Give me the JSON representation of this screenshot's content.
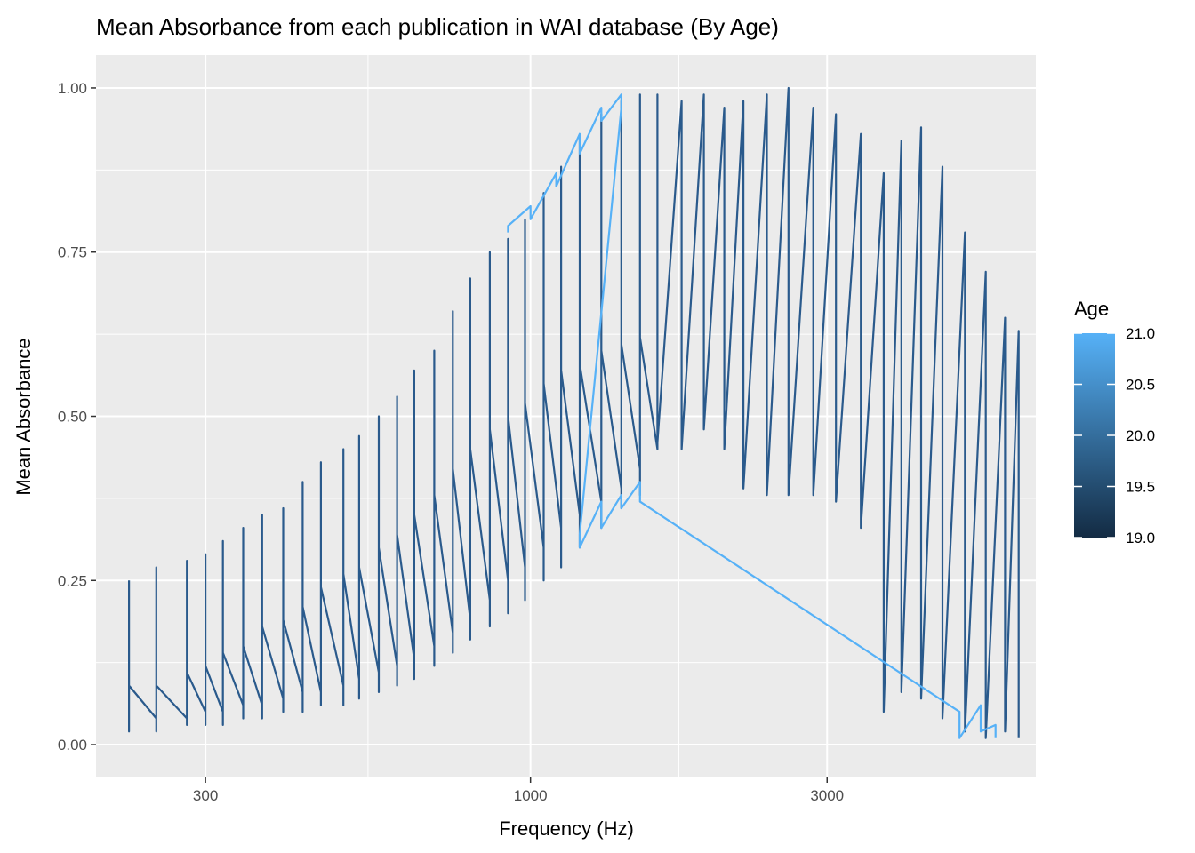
{
  "chart_data": {
    "type": "line",
    "title": "Mean Absorbance from each publication in WAI database (By Age)",
    "xlabel": "Frequency (Hz)",
    "ylabel": "Mean Absorbance",
    "x_scale": "log10",
    "xlim": [
      200,
      6500
    ],
    "ylim": [
      -0.05,
      1.05
    ],
    "x_ticks": [
      {
        "value": 300,
        "label": "300"
      },
      {
        "value": 1000,
        "label": "1000"
      },
      {
        "value": 3000,
        "label": "3000"
      }
    ],
    "y_ticks": [
      {
        "value": 0.0,
        "label": "0.00"
      },
      {
        "value": 0.25,
        "label": "0.25"
      },
      {
        "value": 0.5,
        "label": "0.50"
      },
      {
        "value": 0.75,
        "label": "0.75"
      },
      {
        "value": 1.0,
        "label": "1.00"
      }
    ],
    "grid": true,
    "legend": {
      "title": "Age",
      "position": "right",
      "type": "colorbar",
      "range": [
        19.0,
        21.0
      ],
      "color_low": "#132b43",
      "color_high": "#56b1f7",
      "ticks": [
        {
          "value": 21.0,
          "label": "21.0"
        },
        {
          "value": 20.5,
          "label": "20.5"
        },
        {
          "value": 20.0,
          "label": "20.0"
        },
        {
          "value": 19.5,
          "label": "19.5"
        },
        {
          "value": 19.0,
          "label": "19.0"
        }
      ]
    },
    "series": [
      {
        "age": 20.2,
        "color": "#2a5a8c",
        "points": [
          [
            226,
            0.25
          ],
          [
            226,
            0.02
          ],
          [
            226,
            0.09
          ],
          [
            250,
            0.04
          ],
          [
            250,
            0.27
          ],
          [
            250,
            0.02
          ],
          [
            250,
            0.09
          ],
          [
            280,
            0.04
          ],
          [
            280,
            0.28
          ],
          [
            280,
            0.03
          ],
          [
            280,
            0.11
          ],
          [
            300,
            0.05
          ],
          [
            300,
            0.29
          ],
          [
            300,
            0.03
          ],
          [
            300,
            0.12
          ],
          [
            320,
            0.05
          ],
          [
            320,
            0.31
          ],
          [
            320,
            0.03
          ],
          [
            320,
            0.14
          ],
          [
            345,
            0.06
          ],
          [
            345,
            0.33
          ],
          [
            345,
            0.04
          ],
          [
            345,
            0.15
          ],
          [
            370,
            0.06
          ],
          [
            370,
            0.35
          ],
          [
            370,
            0.04
          ],
          [
            370,
            0.18
          ],
          [
            400,
            0.07
          ],
          [
            400,
            0.36
          ],
          [
            400,
            0.05
          ],
          [
            400,
            0.19
          ],
          [
            430,
            0.08
          ],
          [
            430,
            0.4
          ],
          [
            430,
            0.05
          ],
          [
            430,
            0.21
          ],
          [
            460,
            0.08
          ],
          [
            460,
            0.43
          ],
          [
            460,
            0.06
          ],
          [
            460,
            0.24
          ],
          [
            500,
            0.09
          ],
          [
            500,
            0.45
          ],
          [
            500,
            0.06
          ],
          [
            500,
            0.26
          ],
          [
            530,
            0.1
          ],
          [
            530,
            0.47
          ],
          [
            530,
            0.07
          ],
          [
            530,
            0.27
          ],
          [
            570,
            0.11
          ],
          [
            570,
            0.5
          ],
          [
            570,
            0.08
          ],
          [
            570,
            0.3
          ],
          [
            610,
            0.12
          ],
          [
            610,
            0.53
          ],
          [
            610,
            0.09
          ],
          [
            610,
            0.32
          ],
          [
            650,
            0.13
          ],
          [
            650,
            0.57
          ],
          [
            650,
            0.1
          ],
          [
            650,
            0.35
          ],
          [
            700,
            0.15
          ],
          [
            700,
            0.6
          ],
          [
            700,
            0.12
          ],
          [
            700,
            0.38
          ],
          [
            750,
            0.17
          ],
          [
            750,
            0.66
          ],
          [
            750,
            0.14
          ],
          [
            750,
            0.42
          ],
          [
            800,
            0.19
          ],
          [
            800,
            0.71
          ],
          [
            800,
            0.16
          ],
          [
            800,
            0.45
          ],
          [
            860,
            0.22
          ],
          [
            860,
            0.75
          ],
          [
            860,
            0.18
          ],
          [
            860,
            0.48
          ],
          [
            920,
            0.25
          ],
          [
            920,
            0.77
          ],
          [
            920,
            0.2
          ],
          [
            920,
            0.5
          ],
          [
            980,
            0.27
          ],
          [
            980,
            0.8
          ],
          [
            980,
            0.22
          ],
          [
            980,
            0.52
          ],
          [
            1050,
            0.3
          ],
          [
            1050,
            0.84
          ],
          [
            1050,
            0.25
          ],
          [
            1050,
            0.55
          ],
          [
            1120,
            0.33
          ],
          [
            1120,
            0.88
          ],
          [
            1120,
            0.27
          ],
          [
            1120,
            0.57
          ],
          [
            1200,
            0.35
          ],
          [
            1200,
            0.92
          ],
          [
            1200,
            0.3
          ],
          [
            1200,
            0.58
          ],
          [
            1300,
            0.37
          ],
          [
            1300,
            0.96
          ],
          [
            1300,
            0.33
          ],
          [
            1300,
            0.6
          ],
          [
            1400,
            0.39
          ],
          [
            1400,
            0.98
          ],
          [
            1400,
            0.36
          ],
          [
            1400,
            0.61
          ],
          [
            1500,
            0.42
          ],
          [
            1500,
            0.99
          ],
          [
            1500,
            0.38
          ],
          [
            1500,
            0.62
          ],
          [
            1600,
            0.45
          ],
          [
            1600,
            0.99
          ],
          [
            1600,
            0.46
          ],
          [
            1750,
            0.98
          ],
          [
            1750,
            0.45
          ],
          [
            1900,
            0.99
          ],
          [
            1900,
            0.48
          ],
          [
            2050,
            0.97
          ],
          [
            2050,
            0.45
          ],
          [
            2200,
            0.98
          ],
          [
            2200,
            0.39
          ],
          [
            2400,
            0.99
          ],
          [
            2400,
            0.38
          ],
          [
            2600,
            1.0
          ],
          [
            2600,
            0.38
          ],
          [
            2850,
            0.97
          ],
          [
            2850,
            0.38
          ],
          [
            3100,
            0.96
          ],
          [
            3100,
            0.37
          ],
          [
            3400,
            0.93
          ],
          [
            3400,
            0.33
          ],
          [
            3700,
            0.87
          ],
          [
            3700,
            0.05
          ],
          [
            3950,
            0.92
          ],
          [
            3950,
            0.08
          ],
          [
            4250,
            0.94
          ],
          [
            4250,
            0.07
          ],
          [
            4600,
            0.88
          ],
          [
            4600,
            0.04
          ],
          [
            5000,
            0.78
          ],
          [
            5000,
            0.02
          ],
          [
            5400,
            0.72
          ],
          [
            5400,
            0.01
          ],
          [
            5800,
            0.65
          ],
          [
            5800,
            0.02
          ],
          [
            6100,
            0.63
          ],
          [
            6100,
            0.01
          ]
        ]
      },
      {
        "age": 21.0,
        "color": "#56b1f7",
        "points": [
          [
            920,
            0.78
          ],
          [
            920,
            0.79
          ],
          [
            1000,
            0.82
          ],
          [
            1000,
            0.8
          ],
          [
            1100,
            0.87
          ],
          [
            1100,
            0.85
          ],
          [
            1200,
            0.93
          ],
          [
            1200,
            0.9
          ],
          [
            1300,
            0.97
          ],
          [
            1300,
            0.95
          ],
          [
            1400,
            0.99
          ],
          [
            1400,
            0.97
          ],
          [
            1200,
            0.32
          ],
          [
            1200,
            0.3
          ],
          [
            1300,
            0.37
          ],
          [
            1300,
            0.33
          ],
          [
            1400,
            0.38
          ],
          [
            1400,
            0.36
          ],
          [
            1500,
            0.4
          ],
          [
            1500,
            0.37
          ],
          [
            4900,
            0.05
          ],
          [
            4900,
            0.01
          ],
          [
            5300,
            0.06
          ],
          [
            5300,
            0.02
          ],
          [
            5600,
            0.03
          ],
          [
            5600,
            0.01
          ]
        ]
      }
    ]
  }
}
